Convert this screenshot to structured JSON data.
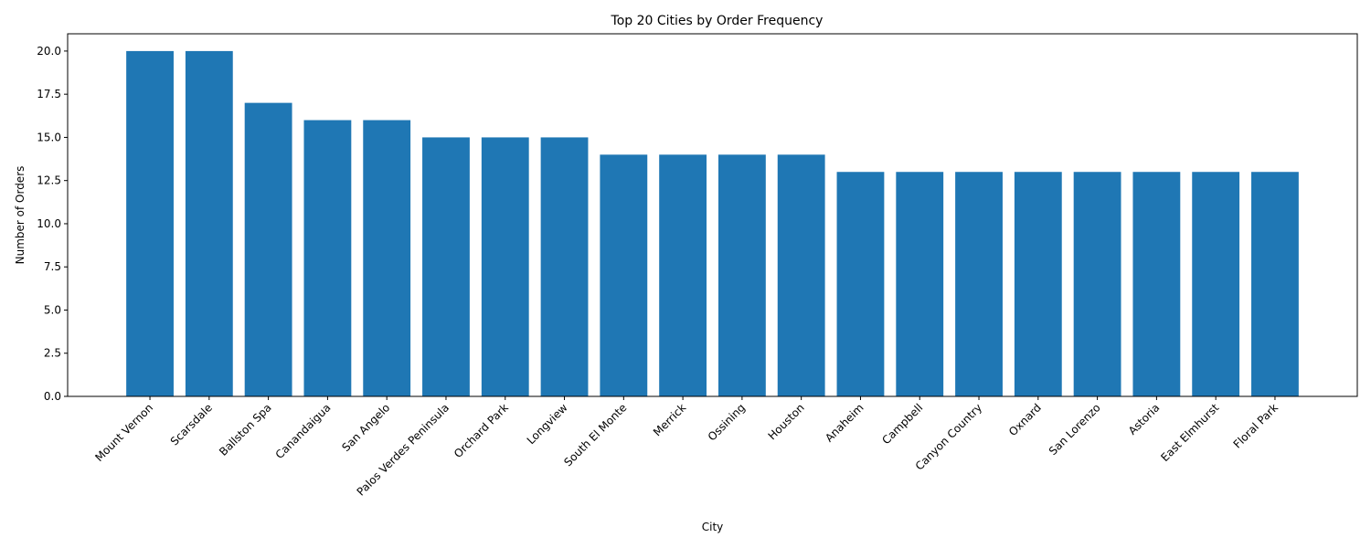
{
  "chart_data": {
    "type": "bar",
    "title": "Top 20 Cities by Order Frequency",
    "xlabel": "City",
    "ylabel": "Number of Orders",
    "categories": [
      "Mount Vernon",
      "Scarsdale",
      "Ballston Spa",
      "Canandaigua",
      "San Angelo",
      "Palos Verdes Peninsula",
      "Orchard Park",
      "Longview",
      "South El Monte",
      "Merrick",
      "Ossining",
      "Houston",
      "Anaheim",
      "Campbell",
      "Canyon Country",
      "Oxnard",
      "San Lorenzo",
      "Astoria",
      "East Elmhurst",
      "Floral Park"
    ],
    "values": [
      20,
      20,
      17,
      16,
      16,
      15,
      15,
      15,
      14,
      14,
      14,
      14,
      13,
      13,
      13,
      13,
      13,
      13,
      13,
      13
    ],
    "ylim": [
      0,
      21
    ],
    "yticks": [
      "0.0",
      "2.5",
      "5.0",
      "7.5",
      "10.0",
      "12.5",
      "15.0",
      "17.5",
      "20.0"
    ],
    "bar_color": "#1f77b4",
    "grid": false,
    "legend": "none"
  }
}
